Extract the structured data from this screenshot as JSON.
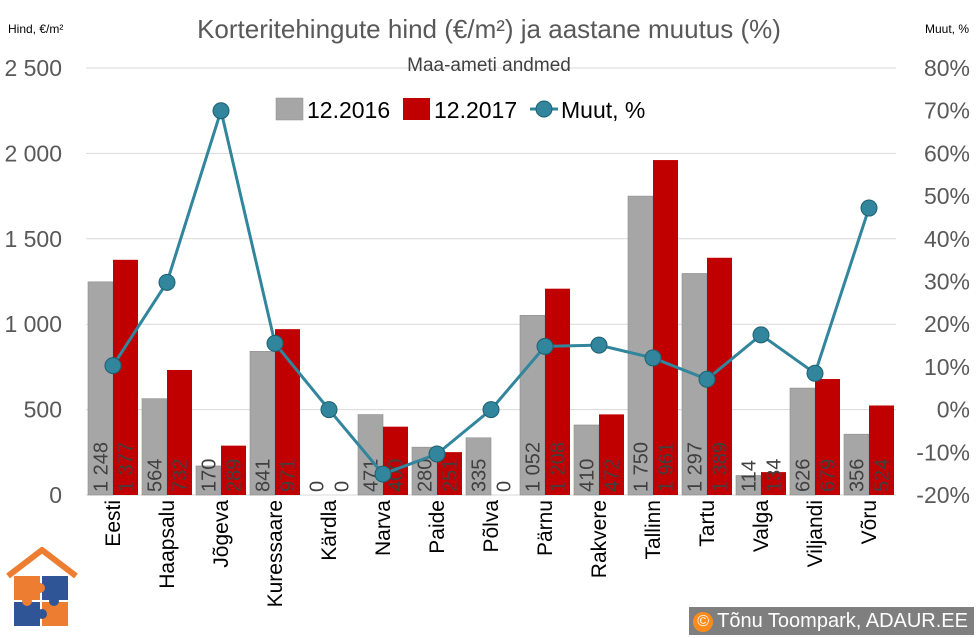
{
  "chart_data": {
    "type": "bar",
    "title": "Korteritehingute hind (€/m²) ja aastane muutus (%)",
    "subtitle": "Maa-ameti andmed",
    "ylabel_left": "Hind, €/m²",
    "ylabel_right": "Muut, %",
    "ylim_left": [
      0,
      2500
    ],
    "ylim_right": [
      -20,
      80
    ],
    "yticks_left": [
      "0",
      "500",
      "1 000",
      "1 500",
      "2 000",
      "2 500"
    ],
    "yticks_right": [
      "-20%",
      "-10%",
      "0%",
      "10%",
      "20%",
      "30%",
      "40%",
      "50%",
      "60%",
      "70%",
      "80%"
    ],
    "categories": [
      "Eesti",
      "Haapsalu",
      "Jõgeva",
      "Kuressaare",
      "Kärdla",
      "Narva",
      "Paide",
      "Põlva",
      "Pärnu",
      "Rakvere",
      "Tallinn",
      "Tartu",
      "Valga",
      "Viljandi",
      "Võru"
    ],
    "series": [
      {
        "name": "12.2016",
        "kind": "bar",
        "color": "#a6a6a6",
        "values": [
          1248,
          564,
          170,
          841,
          0,
          471,
          280,
          335,
          1052,
          410,
          1750,
          1297,
          114,
          626,
          356
        ],
        "labels": [
          "1 248",
          "564",
          "170",
          "841",
          "0",
          "471",
          "280",
          "335",
          "1 052",
          "410",
          "1 750",
          "1 297",
          "114",
          "626",
          "356"
        ]
      },
      {
        "name": "12.2017",
        "kind": "bar",
        "color": "#c00000",
        "values": [
          1377,
          732,
          289,
          971,
          0,
          400,
          251,
          0,
          1208,
          472,
          1961,
          1389,
          134,
          679,
          524
        ],
        "labels": [
          "1 377",
          "732",
          "289",
          "971",
          "0",
          "400",
          "251",
          "0",
          "1 208",
          "472",
          "1 961",
          "1 389",
          "134",
          "679",
          "524"
        ]
      },
      {
        "name": "Muut, %",
        "kind": "line",
        "color": "#31859c",
        "values": [
          10.3,
          29.8,
          70.0,
          15.5,
          0.0,
          -15.1,
          -10.4,
          0.0,
          14.8,
          15.1,
          12.1,
          7.1,
          17.5,
          8.5,
          47.2
        ]
      }
    ]
  },
  "copyright": {
    "symbol": "©",
    "text": "Tõnu Toompark, ADAUR.EE"
  },
  "logo": {
    "icon": "house-puzzle-logo"
  }
}
